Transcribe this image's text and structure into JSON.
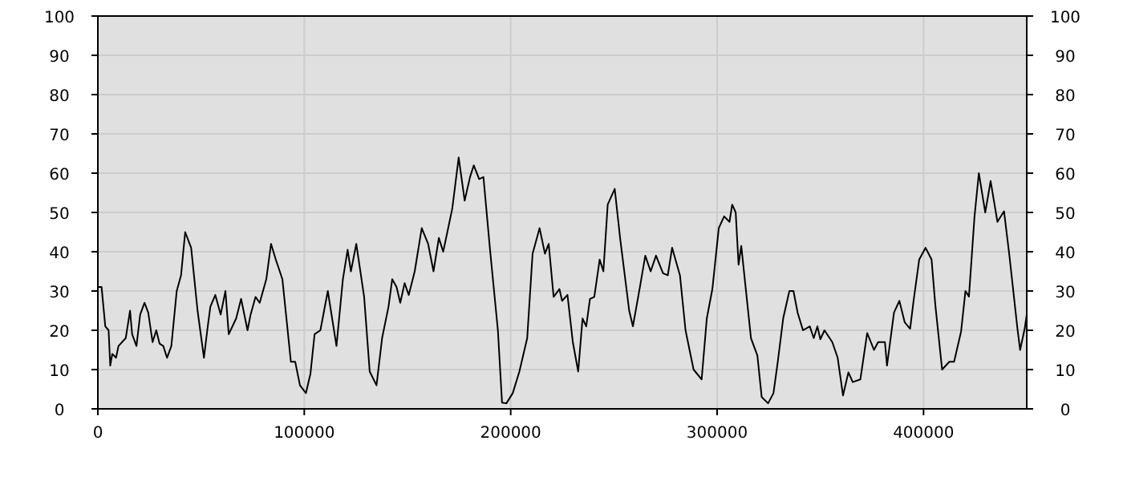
{
  "chart_data": {
    "type": "line",
    "x": [
      0,
      1800,
      3600,
      5200,
      6000,
      7000,
      8800,
      10000,
      13500,
      15600,
      16600,
      18700,
      20500,
      22600,
      24400,
      26500,
      28300,
      29900,
      31700,
      33500,
      35600,
      38200,
      40300,
      42300,
      45200,
      48300,
      51400,
      53000,
      54500,
      56900,
      59500,
      61800,
      63400,
      67000,
      69400,
      72500,
      74000,
      76400,
      78400,
      81600,
      83900,
      86200,
      89400,
      93500,
      95600,
      97900,
      100800,
      103000,
      105000,
      107800,
      111400,
      115600,
      118700,
      121000,
      122600,
      125200,
      129000,
      131700,
      135000,
      137700,
      140800,
      142600,
      144700,
      146500,
      148600,
      150600,
      153500,
      156900,
      160000,
      162600,
      165200,
      167300,
      171700,
      174800,
      177700,
      180300,
      182100,
      184700,
      186800,
      189900,
      193800,
      195800,
      197900,
      201000,
      204200,
      208000,
      210600,
      214000,
      216600,
      218400,
      220800,
      223600,
      224900,
      227500,
      230100,
      232700,
      234800,
      236600,
      238400,
      240500,
      243100,
      244900,
      247000,
      250400,
      253000,
      257400,
      259200,
      262600,
      265200,
      267800,
      270400,
      273800,
      276100,
      278200,
      282000,
      284700,
      288600,
      292500,
      295000,
      297700,
      300800,
      303400,
      306000,
      307300,
      309000,
      310400,
      311700,
      313800,
      316400,
      319500,
      321600,
      324700,
      327300,
      329400,
      332000,
      335000,
      337000,
      339000,
      341600,
      344900,
      346800,
      348600,
      350000,
      352000,
      355800,
      358400,
      361000,
      363600,
      365700,
      369400,
      372700,
      376000,
      378000,
      381300,
      382300,
      385700,
      388300,
      390900,
      393500,
      395300,
      397900,
      401000,
      403900,
      405700,
      409000,
      412500,
      414800,
      418200,
      420300,
      422000,
      424700,
      426800,
      429900,
      432500,
      435800,
      439000,
      441600,
      445500,
      446800,
      449000,
      450000
    ],
    "series": [
      {
        "color": "#000000",
        "values": [
          31,
          31,
          21,
          20,
          11,
          14,
          13,
          16,
          18,
          25,
          19,
          16,
          24,
          27,
          24.5,
          17,
          20,
          16.6,
          16,
          13,
          16,
          30,
          34,
          45,
          41,
          25,
          13,
          20,
          26,
          29,
          24,
          30,
          19,
          23,
          28,
          20,
          24,
          28.5,
          27,
          33,
          42,
          38,
          33,
          12,
          12,
          6,
          4,
          9,
          19,
          20,
          30,
          16,
          33,
          40.5,
          35,
          42,
          28.5,
          9.5,
          6,
          18,
          26,
          33,
          31,
          27,
          32,
          29,
          35,
          46,
          42,
          35,
          43.5,
          40,
          51,
          64,
          53,
          59,
          62,
          58.5,
          59,
          41,
          20,
          1.6,
          1.4,
          4,
          9.5,
          18,
          39.5,
          46,
          39.5,
          42,
          28.5,
          30.5,
          27.5,
          29,
          17,
          9.5,
          23,
          21,
          28,
          28.5,
          38,
          35,
          52,
          56,
          43.5,
          25,
          21,
          31,
          39,
          35,
          39,
          34.5,
          34,
          41,
          34,
          20,
          10,
          7.5,
          23,
          30.5,
          46,
          49,
          47.6,
          52,
          50,
          36.7,
          41.5,
          31,
          18,
          13.6,
          3,
          1.4,
          4,
          12,
          23,
          30,
          30,
          24.5,
          20,
          21,
          18,
          21,
          17.7,
          20,
          17,
          13,
          3.4,
          9.3,
          6.8,
          7.5,
          19.3,
          15,
          17,
          17,
          11,
          24.5,
          27.5,
          22,
          20.4,
          28,
          38,
          41,
          38,
          26.5,
          10,
          12,
          12,
          19.7,
          30,
          28.6,
          49,
          60,
          50,
          58,
          47.6,
          50.3,
          39,
          20.4,
          15,
          20.4,
          24
        ]
      }
    ],
    "xlim": [
      0,
      450000
    ],
    "xticks": [
      0,
      100000,
      200000,
      300000,
      400000
    ],
    "ylim": [
      0,
      100
    ],
    "yticks": [
      0,
      10,
      20,
      30,
      40,
      50,
      60,
      70,
      80,
      90,
      100
    ],
    "y2lim": [
      0,
      100
    ],
    "y2ticks": [
      0,
      10,
      20,
      30,
      40,
      50,
      60,
      70,
      80,
      90,
      100
    ],
    "grid": true,
    "marker": "none",
    "line_style": "solid"
  }
}
